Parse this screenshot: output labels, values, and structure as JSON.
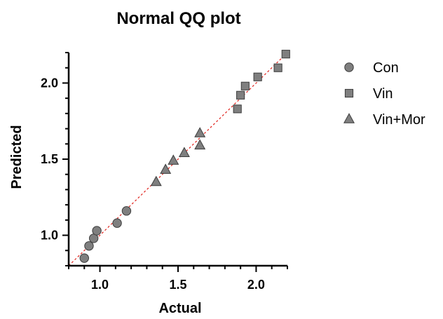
{
  "chart_data": {
    "type": "scatter",
    "title": "Normal QQ plot",
    "xlabel": "Actual",
    "ylabel": "Predicted",
    "xlim": [
      0.8,
      2.2
    ],
    "ylim": [
      0.8,
      2.2
    ],
    "x_ticks": [
      "1.0",
      "1.5",
      "2.0"
    ],
    "y_ticks": [
      "1.0",
      "1.5",
      "2.0"
    ],
    "x_tick_values": [
      1.0,
      1.5,
      2.0
    ],
    "y_tick_values": [
      1.0,
      1.5,
      2.0
    ],
    "x_minor_step": 0.1,
    "y_minor_step": 0.1,
    "grid": false,
    "legend_position": "right",
    "reference_line": {
      "style": "dashed",
      "color": "#e0201a",
      "from": [
        0.8,
        0.8
      ],
      "to": [
        2.2,
        2.2
      ]
    },
    "marker_color": "#7f7f7f",
    "series": [
      {
        "name": "Con",
        "marker": "circle",
        "points": [
          [
            0.9,
            0.85
          ],
          [
            0.93,
            0.93
          ],
          [
            0.96,
            0.98
          ],
          [
            0.98,
            1.03
          ],
          [
            1.11,
            1.08
          ],
          [
            1.17,
            1.16
          ]
        ]
      },
      {
        "name": "Vin",
        "marker": "square",
        "points": [
          [
            1.88,
            1.83
          ],
          [
            1.9,
            1.92
          ],
          [
            1.93,
            1.98
          ],
          [
            2.01,
            2.04
          ],
          [
            2.14,
            2.1
          ],
          [
            2.19,
            2.19
          ]
        ]
      },
      {
        "name": "Vin+Mor",
        "marker": "triangle",
        "points": [
          [
            1.36,
            1.35
          ],
          [
            1.42,
            1.43
          ],
          [
            1.47,
            1.49
          ],
          [
            1.54,
            1.54
          ],
          [
            1.64,
            1.59
          ],
          [
            1.64,
            1.67
          ]
        ]
      }
    ]
  }
}
